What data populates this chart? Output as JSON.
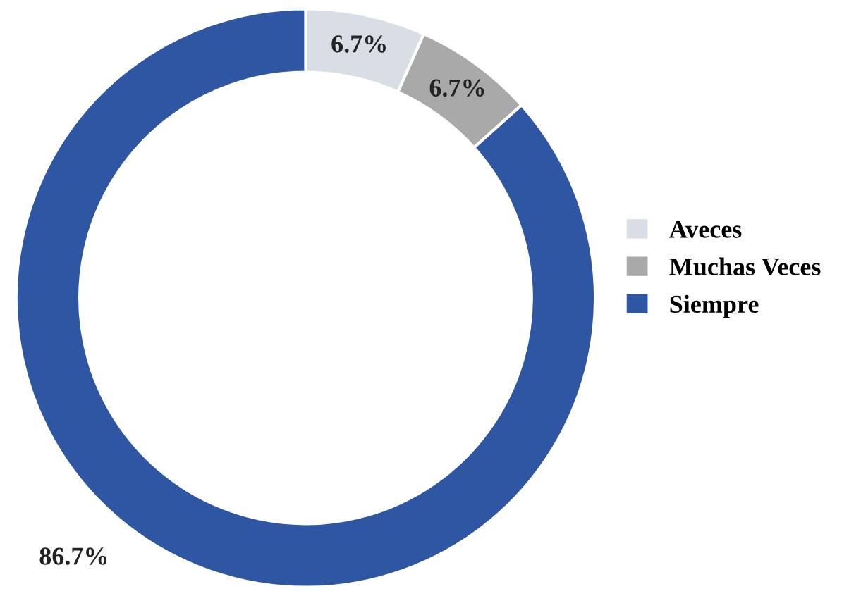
{
  "chart_data": {
    "type": "donut",
    "categories": [
      "Aveces",
      "Muchas Veces",
      "Siempre"
    ],
    "values": [
      6.7,
      6.7,
      86.7
    ],
    "colors": [
      "#d9dde6",
      "#a9a9a9",
      "#2e56a3"
    ],
    "value_labels": [
      "6.7%",
      "6.7%",
      "86.7%"
    ],
    "legend": "right"
  }
}
